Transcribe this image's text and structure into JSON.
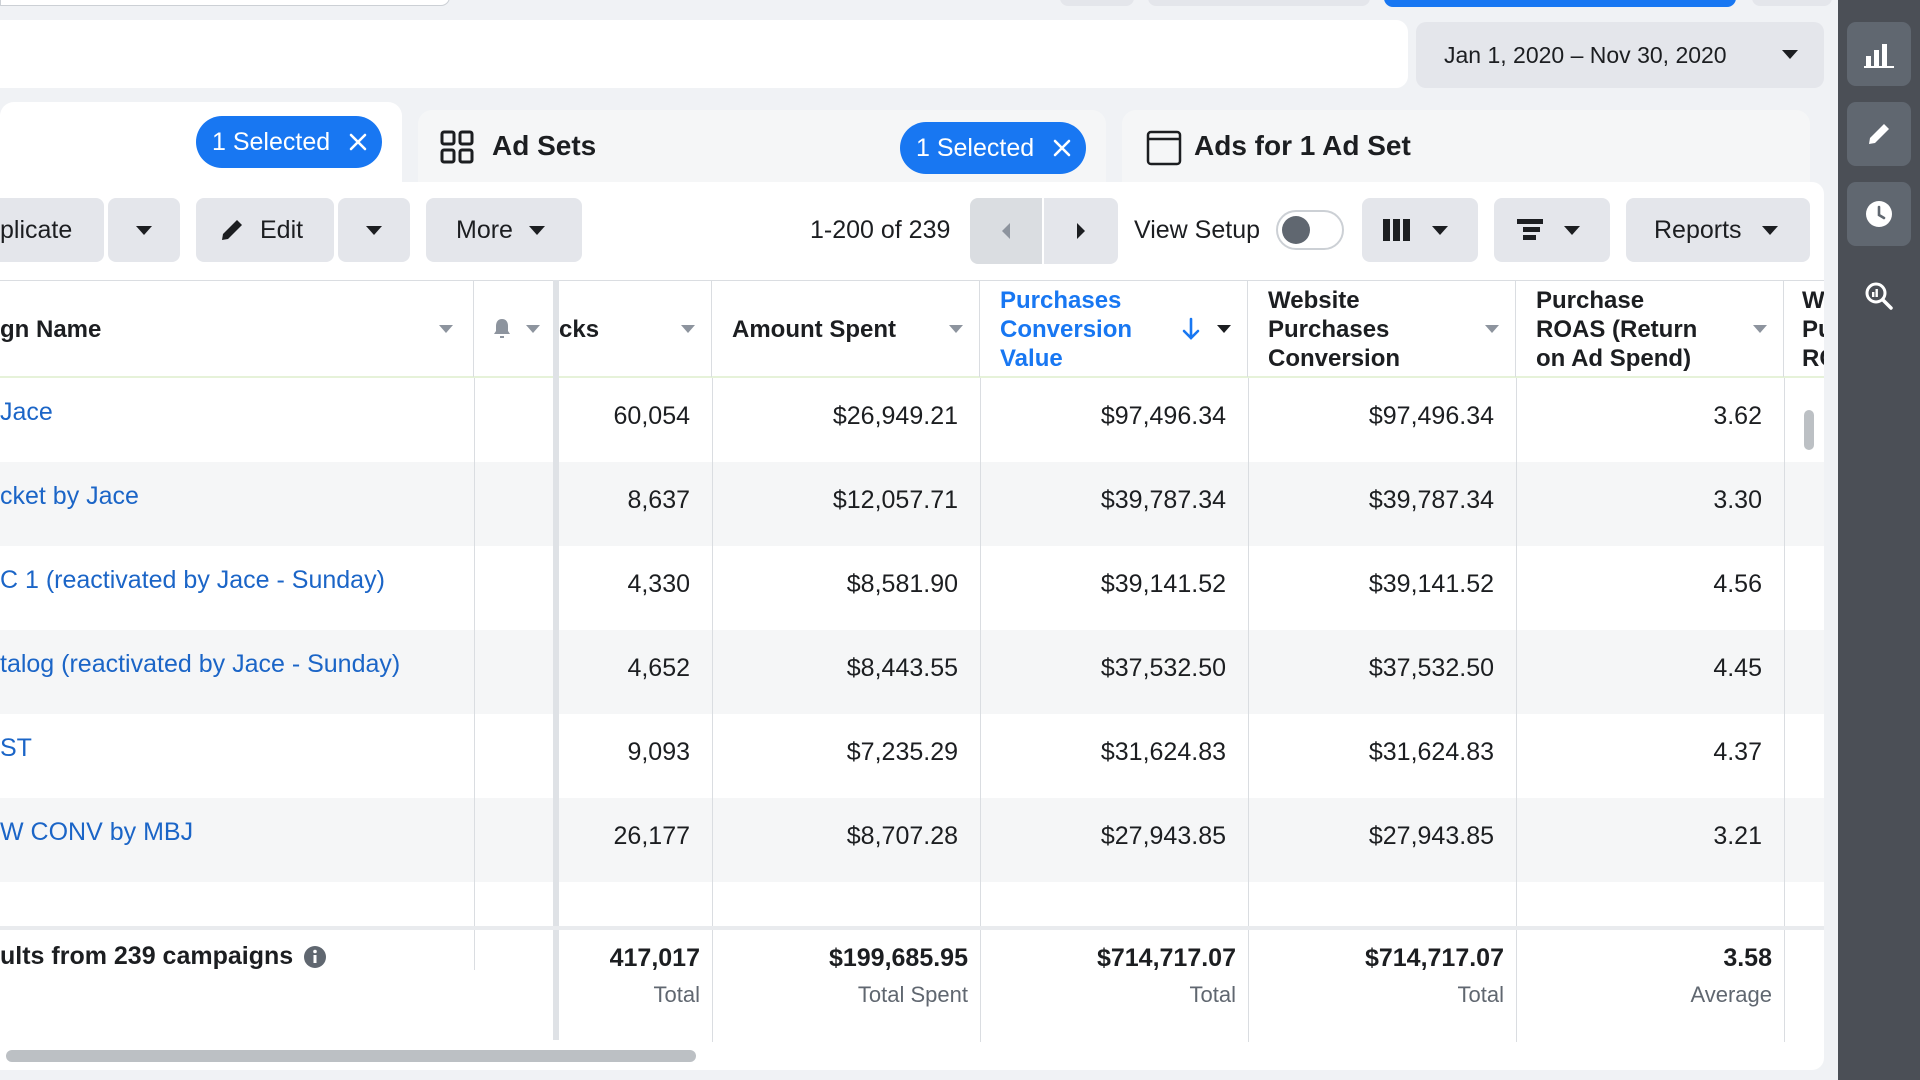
{
  "date_range": "Jan 1, 2020 – Nov 30, 2020",
  "tabs": {
    "campaigns_selected": "1 Selected",
    "ad_sets": {
      "title": "Ad Sets",
      "selected": "1 Selected"
    },
    "ads": {
      "title": "Ads for 1 Ad Set"
    }
  },
  "toolbar": {
    "duplicate_label": "plicate",
    "edit_label": "Edit",
    "more_label": "More",
    "pagination": "1-200 of 239",
    "view_setup_label": "View Setup",
    "reports_label": "Reports"
  },
  "columns": {
    "name": "gn Name",
    "clicks": "cks",
    "amount_spent": "Amount Spent",
    "purchases_conv_value": [
      "Purchases",
      "Conversion",
      "Value"
    ],
    "website_purchases_conv": [
      "Website",
      "Purchases",
      "Conversion"
    ],
    "purchase_roas": [
      "Purchase",
      "ROAS (Return",
      "on Ad Spend)"
    ],
    "extra": [
      "W",
      "Pu",
      "RC"
    ]
  },
  "rows": [
    {
      "name": "Jace",
      "clicks": "60,054",
      "spent": "$26,949.21",
      "conv_value": "$97,496.34",
      "web_conv": "$97,496.34",
      "roas": "3.62"
    },
    {
      "name": "cket by Jace",
      "clicks": "8,637",
      "spent": "$12,057.71",
      "conv_value": "$39,787.34",
      "web_conv": "$39,787.34",
      "roas": "3.30"
    },
    {
      "name": "C 1 (reactivated by Jace - Sunday)",
      "clicks": "4,330",
      "spent": "$8,581.90",
      "conv_value": "$39,141.52",
      "web_conv": "$39,141.52",
      "roas": "4.56"
    },
    {
      "name": "talog (reactivated by Jace - Sunday)",
      "clicks": "4,652",
      "spent": "$8,443.55",
      "conv_value": "$37,532.50",
      "web_conv": "$37,532.50",
      "roas": "4.45"
    },
    {
      "name": "ST",
      "clicks": "9,093",
      "spent": "$7,235.29",
      "conv_value": "$31,624.83",
      "web_conv": "$31,624.83",
      "roas": "4.37"
    },
    {
      "name": "W CONV by MBJ",
      "clicks": "26,177",
      "spent": "$8,707.28",
      "conv_value": "$27,943.85",
      "web_conv": "$27,943.85",
      "roas": "3.21"
    }
  ],
  "footer": {
    "label": "ults from 239 campaigns",
    "clicks": {
      "value": "417,017",
      "sub": "Total"
    },
    "spent": {
      "value": "$199,685.95",
      "sub": "Total Spent"
    },
    "conv_value": {
      "value": "$714,717.07",
      "sub": "Total"
    },
    "web_conv": {
      "value": "$714,717.07",
      "sub": "Total"
    },
    "roas": {
      "value": "3.58",
      "sub": "Average"
    }
  },
  "colors": {
    "accent": "#1877f2",
    "link": "#1b65c7",
    "rail": "#4b4f56"
  }
}
